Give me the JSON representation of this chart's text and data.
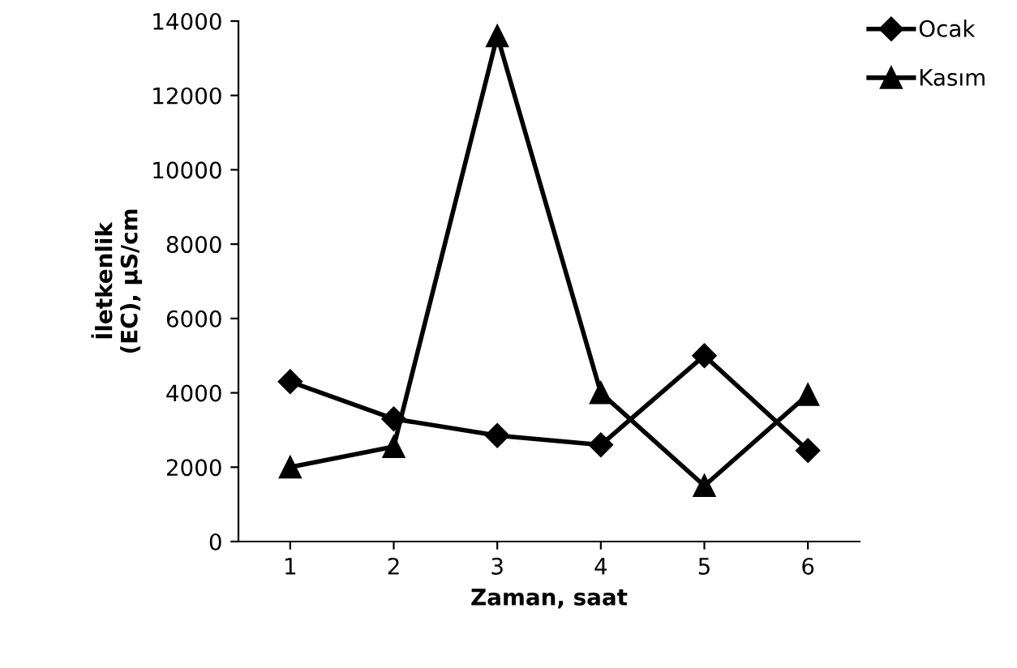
{
  "chart_data": {
    "type": "line",
    "xlabel": "Zaman, saat",
    "ylabel": "İletkenlik\n(EC), µS/cm",
    "categories": [
      "1",
      "2",
      "3",
      "4",
      "5",
      "6"
    ],
    "series": [
      {
        "name": "Ocak",
        "color": "#000000",
        "marker": "diamond",
        "values": [
          4300,
          3300,
          2850,
          2600,
          5000,
          2450
        ]
      },
      {
        "name": "Kasım",
        "color": "#000000",
        "marker": "triangle",
        "values": [
          2000,
          2550,
          13600,
          4000,
          1500,
          3950
        ]
      }
    ],
    "ylim": [
      0,
      14000
    ],
    "yticks": [
      0,
      2000,
      4000,
      6000,
      8000,
      10000,
      12000,
      14000
    ],
    "grid": false,
    "legend": "top right",
    "line_style": "solid"
  }
}
